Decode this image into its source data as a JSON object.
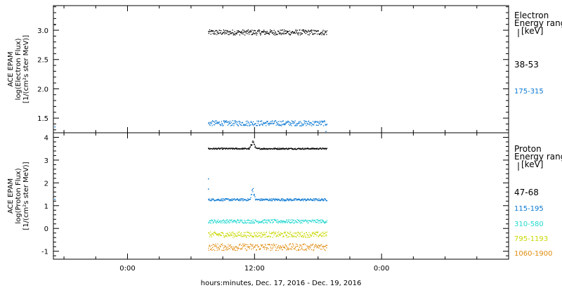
{
  "x_axis": {
    "label": "hours:minutes, Dec. 17, 2016 - Dec. 19, 2016",
    "ticks": [
      {
        "t": 0,
        "label": "0:00"
      },
      {
        "t": 12,
        "label": "12:00"
      },
      {
        "t": 24,
        "label": "0:00"
      }
    ],
    "range_hours": [
      -7,
      36
    ]
  },
  "panels": [
    {
      "id": "electron",
      "ylabel_lines": [
        "ACE EPAM",
        "log(Electron Flux)",
        "[1/(cm²s ster MeV)]"
      ],
      "legend_title_lines": [
        "Electron",
        "Energy ranges",
        "[keV]"
      ],
      "ylim": [
        1.25,
        3.42
      ],
      "y_ticks": [
        1.5,
        2.0,
        2.5,
        3.0
      ],
      "y_tick_labels": [
        "1.5",
        "2.0",
        "2.5",
        "3.0"
      ],
      "series": [
        {
          "name": "38-53",
          "color": "#000000",
          "mean": 2.97,
          "noise": 0.045,
          "t_start": 7.6,
          "t_end": 18.8,
          "extra": [
            {
              "t": -6.9,
              "v": 3.1
            }
          ]
        },
        {
          "name": "175-315",
          "color": "#0a78d2",
          "mean": 1.42,
          "noise": 0.045,
          "t_start": 7.6,
          "t_end": 18.8,
          "extra": [
            {
              "t": -6.9,
              "v": 1.36
            },
            {
              "t": 18.7,
              "v": 1.28
            }
          ]
        }
      ]
    },
    {
      "id": "proton",
      "ylabel_lines": [
        "ACE EPAM",
        "log(Proton Flux)",
        "[1/(cm²s ster MeV)]"
      ],
      "legend_title_lines": [
        "Proton",
        "Energy ranges",
        "[keV]"
      ],
      "ylim": [
        -1.35,
        4.2
      ],
      "y_ticks": [
        -1,
        0,
        1,
        2,
        3,
        4
      ],
      "y_tick_labels": [
        "-1",
        "0",
        "1",
        "2",
        "3",
        "4"
      ],
      "series": [
        {
          "name": "47-68",
          "color": "#000000",
          "mean": 3.52,
          "noise": 0.03,
          "t_start": 7.6,
          "t_end": 18.8,
          "bump": {
            "t": 11.8,
            "dv": 0.4,
            "w": 0.3
          }
        },
        {
          "name": "115-195",
          "color": "#0a78d2",
          "mean": 1.28,
          "noise": 0.05,
          "t_start": 7.6,
          "t_end": 18.8,
          "bump": {
            "t": 11.8,
            "dv": 0.55,
            "w": 0.25
          },
          "extra": [
            {
              "t": 7.6,
              "v": 2.2
            },
            {
              "t": 7.6,
              "v": 1.75
            },
            {
              "t": -6.9,
              "v": 1.3
            }
          ]
        },
        {
          "name": "310-580",
          "color": "#22d8cf",
          "mean": 0.33,
          "noise": 0.08,
          "t_start": 7.6,
          "t_end": 18.8
        },
        {
          "name": "795-1193",
          "color": "#c8d800",
          "mean": -0.25,
          "noise": 0.12,
          "t_start": 7.6,
          "t_end": 18.8
        },
        {
          "name": "1060-1900",
          "color": "#e08c10",
          "mean": -0.8,
          "noise": 0.15,
          "t_start": 7.6,
          "t_end": 18.8
        }
      ]
    }
  ]
}
